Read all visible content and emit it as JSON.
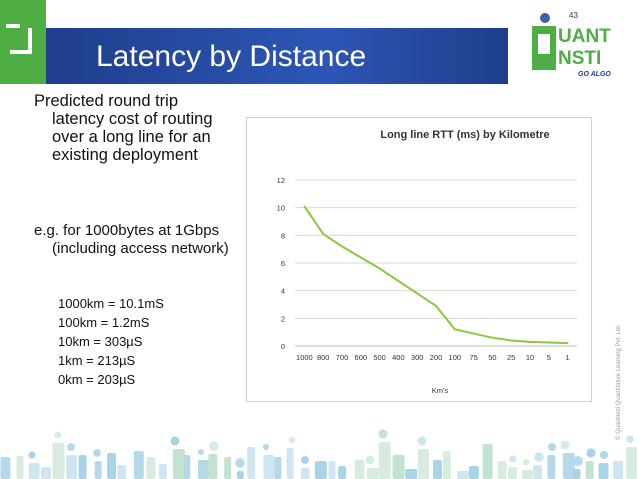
{
  "slide": {
    "title": "Latency by Distance",
    "page_number": "43"
  },
  "logo": {
    "line1": "UANT",
    "line2": "NSTI",
    "tagline": "GO ALGO"
  },
  "bullets": {
    "b1_line1": "Predicted round trip",
    "b1_line2": "latency cost of routing",
    "b1_line3": "over a long line for an",
    "b1_line4": "existing deployment",
    "b2_line1": "e.g. for 1000bytes at 1Gbps",
    "b2_line2": "(including access network)"
  },
  "list": [
    "1000km = 10.1mS",
    "100km = 1.2mS",
    "10km = 303µS",
    "1km = 213µS",
    "0km = 203µS"
  ],
  "copyright": "© Quantinsti Quantitative Learning Pvt. Ltd.",
  "colors": {
    "green": "#4fae43",
    "blue": "#1f3e8a",
    "line": "#8dc63f"
  },
  "chart_data": {
    "type": "line",
    "title": "Long line RTT (ms) by Kilometre",
    "xlabel": "Km's",
    "ylabel": "",
    "categories": [
      "1000",
      "800",
      "700",
      "600",
      "500",
      "400",
      "300",
      "200",
      "100",
      "75",
      "50",
      "25",
      "10",
      "5",
      "1"
    ],
    "series": [
      {
        "values": [
          10.1,
          8.1,
          7.2,
          6.4,
          5.6,
          4.7,
          3.8,
          2.9,
          1.2,
          0.9,
          0.6,
          0.4,
          0.3,
          0.25,
          0.21
        ]
      }
    ],
    "ylim": [
      0,
      12
    ],
    "yticks": [
      "0",
      "2",
      "4",
      "6",
      "8",
      "10",
      "12"
    ],
    "grid": true,
    "legend": "none"
  }
}
